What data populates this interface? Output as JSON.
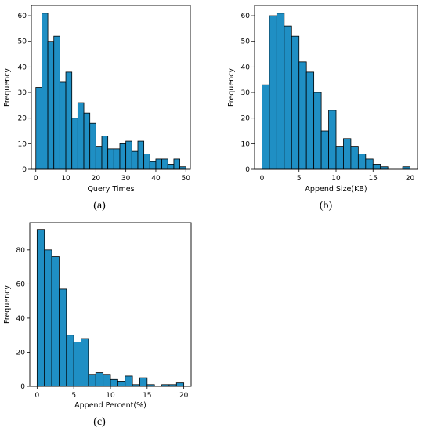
{
  "chart_data": [
    {
      "type": "bar",
      "panel": "(a)",
      "caption": "(a)",
      "xlabel": "Query Times",
      "ylabel": "Frequency",
      "xlim": [
        -1.5,
        51.5
      ],
      "ylim": [
        0,
        64
      ],
      "xticks": [
        0,
        10,
        20,
        30,
        40,
        50
      ],
      "yticks": [
        0,
        10,
        20,
        30,
        40,
        50,
        60
      ],
      "bin_start": 0,
      "bin_width": 2,
      "values": [
        32,
        61,
        50,
        52,
        34,
        38,
        20,
        26,
        22,
        18,
        9,
        13,
        8,
        8,
        10,
        11,
        7,
        11,
        6,
        3,
        4,
        4,
        2,
        4,
        1
      ]
    },
    {
      "type": "bar",
      "panel": "(b)",
      "caption": "(b)",
      "xlabel": "Append Size(KB)",
      "ylabel": "Frequency",
      "xlim": [
        -1,
        21
      ],
      "ylim": [
        0,
        64
      ],
      "xticks": [
        0,
        5,
        10,
        15,
        20
      ],
      "yticks": [
        0,
        10,
        20,
        30,
        40,
        50,
        60
      ],
      "bin_start": 0,
      "bin_width": 1,
      "values": [
        33,
        60,
        61,
        56,
        52,
        42,
        38,
        30,
        15,
        23,
        9,
        12,
        9,
        6,
        4,
        2,
        1,
        0,
        0,
        1
      ]
    },
    {
      "type": "bar",
      "panel": "(c)",
      "caption": "(c)",
      "xlabel": "Append Percent(%)",
      "ylabel": "Frequency",
      "xlim": [
        -1,
        21
      ],
      "ylim": [
        0,
        96
      ],
      "xticks": [
        0,
        5,
        10,
        15,
        20
      ],
      "yticks": [
        0,
        20,
        40,
        60,
        80
      ],
      "bin_start": 0,
      "bin_width": 1,
      "values": [
        92,
        80,
        76,
        57,
        30,
        26,
        28,
        7,
        8,
        7,
        4,
        3,
        6,
        1,
        5,
        1,
        0,
        1,
        1,
        2
      ]
    }
  ]
}
